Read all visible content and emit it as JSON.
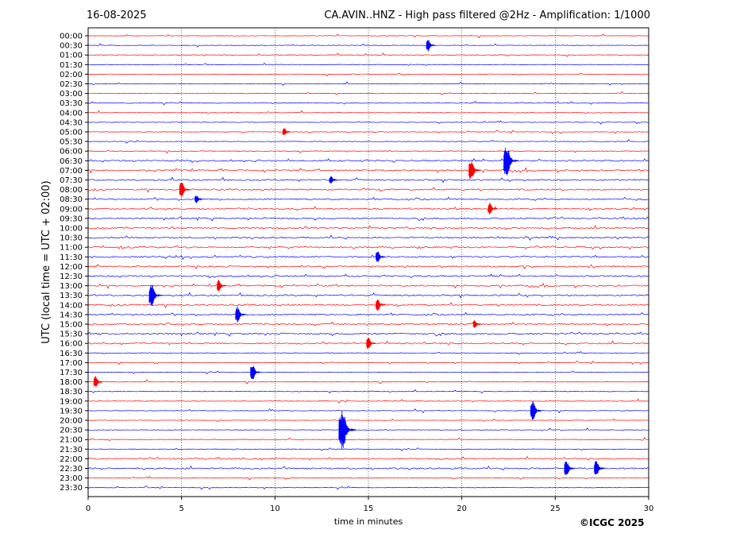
{
  "header": {
    "date": "16-08-2025",
    "title": "CA.AVIN..HNZ - High pass filtered @2Hz - Amplification: 1/1000"
  },
  "footer": {
    "copyright": "©ICGC 2025"
  },
  "chart_data": {
    "type": "line",
    "xlabel": "time in minutes",
    "ylabel": "UTC (local time = UTC + 02:00)",
    "xlim": [
      0,
      30
    ],
    "x_ticks": [
      0,
      5,
      10,
      15,
      20,
      25,
      30
    ],
    "grid": "vertical dotted at 5-minute intervals",
    "colors": {
      "odd": "#ff0000",
      "even": "#0000ff"
    },
    "traces": [
      "00:00",
      "00:30",
      "01:00",
      "01:30",
      "02:00",
      "02:30",
      "03:00",
      "03:30",
      "04:00",
      "04:30",
      "05:00",
      "05:30",
      "06:00",
      "06:30",
      "07:00",
      "07:30",
      "08:00",
      "08:30",
      "09:00",
      "09:30",
      "10:00",
      "10:30",
      "11:00",
      "11:30",
      "12:00",
      "12:30",
      "13:00",
      "13:30",
      "14:00",
      "14:30",
      "15:00",
      "15:30",
      "16:00",
      "16:30",
      "17:00",
      "17:30",
      "18:00",
      "18:30",
      "19:00",
      "19:30",
      "20:00",
      "20:30",
      "21:00",
      "21:30",
      "22:00",
      "22:30",
      "23:00",
      "23:30"
    ],
    "events": [
      {
        "trace": "00:30",
        "minute": 18.2,
        "amplitude": 0.3
      },
      {
        "trace": "05:00",
        "minute": 10.5,
        "amplitude": 0.2
      },
      {
        "trace": "06:30",
        "minute": 22.4,
        "amplitude": 0.8
      },
      {
        "trace": "07:00",
        "minute": 20.5,
        "amplitude": 0.5
      },
      {
        "trace": "07:30",
        "minute": 13.0,
        "amplitude": 0.2
      },
      {
        "trace": "08:00",
        "minute": 5.0,
        "amplitude": 0.4
      },
      {
        "trace": "08:30",
        "minute": 5.8,
        "amplitude": 0.2
      },
      {
        "trace": "09:00",
        "minute": 21.5,
        "amplitude": 0.3
      },
      {
        "trace": "11:30",
        "minute": 15.5,
        "amplitude": 0.3
      },
      {
        "trace": "13:00",
        "minute": 7.0,
        "amplitude": 0.3
      },
      {
        "trace": "13:30",
        "minute": 3.4,
        "amplitude": 0.6
      },
      {
        "trace": "14:00",
        "minute": 15.5,
        "amplitude": 0.3
      },
      {
        "trace": "14:30",
        "minute": 8.0,
        "amplitude": 0.4
      },
      {
        "trace": "15:00",
        "minute": 20.7,
        "amplitude": 0.2
      },
      {
        "trace": "16:00",
        "minute": 15.0,
        "amplitude": 0.3
      },
      {
        "trace": "17:30",
        "minute": 8.8,
        "amplitude": 0.4
      },
      {
        "trace": "18:00",
        "minute": 0.4,
        "amplitude": 0.3
      },
      {
        "trace": "19:30",
        "minute": 23.8,
        "amplitude": 0.5
      },
      {
        "trace": "20:30",
        "minute": 13.6,
        "amplitude": 1.0
      },
      {
        "trace": "22:30",
        "minute": 25.6,
        "amplitude": 0.4
      },
      {
        "trace": "22:30",
        "minute": 27.2,
        "amplitude": 0.4
      }
    ]
  }
}
